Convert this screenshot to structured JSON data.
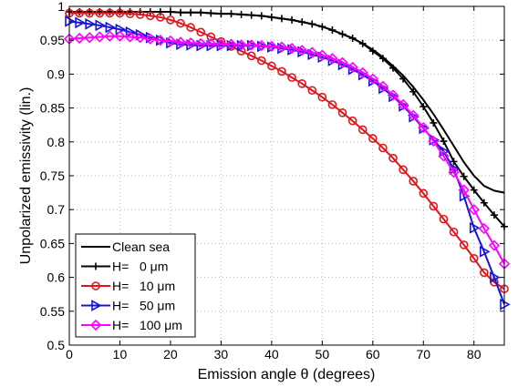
{
  "chart_data": {
    "type": "line",
    "title": "",
    "xlabel": "Emission angle θ (degrees)",
    "ylabel": "Unpolarized emissivity (lin.)",
    "xlim": [
      0,
      86
    ],
    "ylim": [
      0.5,
      1.0
    ],
    "xticks": [
      0,
      10,
      20,
      30,
      40,
      50,
      60,
      70,
      80
    ],
    "yticks": [
      0.5,
      0.55,
      0.6,
      0.65,
      0.7,
      0.75,
      0.8,
      0.85,
      0.9,
      0.95,
      1.0
    ],
    "xtick_labels": [
      "0",
      "10",
      "20",
      "30",
      "40",
      "50",
      "60",
      "70",
      "80"
    ],
    "ytick_labels": [
      "0.5",
      "0.55",
      "0.6",
      "0.65",
      "0.7",
      "0.75",
      "0.8",
      "0.85",
      "0.9",
      "0.95",
      "1"
    ],
    "grid": true,
    "legend_position": "bottom-left",
    "x": [
      0,
      2,
      4,
      6,
      8,
      10,
      12,
      14,
      16,
      18,
      20,
      22,
      24,
      26,
      28,
      30,
      32,
      34,
      36,
      38,
      40,
      42,
      44,
      46,
      48,
      50,
      52,
      54,
      56,
      58,
      60,
      62,
      64,
      66,
      68,
      70,
      72,
      74,
      76,
      78,
      80,
      82,
      84,
      86
    ],
    "series": [
      {
        "name": "Clean sea",
        "color": "#000000",
        "marker": "none",
        "values": [
          0.992,
          0.992,
          0.992,
          0.992,
          0.992,
          0.992,
          0.992,
          0.992,
          0.992,
          0.992,
          0.992,
          0.991,
          0.991,
          0.991,
          0.99,
          0.989,
          0.989,
          0.988,
          0.987,
          0.986,
          0.984,
          0.982,
          0.98,
          0.977,
          0.974,
          0.97,
          0.965,
          0.959,
          0.953,
          0.945,
          0.936,
          0.925,
          0.912,
          0.898,
          0.881,
          0.862,
          0.841,
          0.818,
          0.794,
          0.77,
          0.75,
          0.735,
          0.728,
          0.725
        ]
      },
      {
        "name": "H=   0 μm",
        "color": "#000000",
        "marker": "plus",
        "values": [
          0.992,
          0.992,
          0.992,
          0.992,
          0.992,
          0.992,
          0.992,
          0.992,
          0.992,
          0.992,
          0.992,
          0.991,
          0.991,
          0.991,
          0.99,
          0.989,
          0.989,
          0.988,
          0.987,
          0.986,
          0.984,
          0.982,
          0.98,
          0.977,
          0.974,
          0.97,
          0.965,
          0.959,
          0.953,
          0.945,
          0.934,
          0.923,
          0.909,
          0.893,
          0.874,
          0.852,
          0.828,
          0.801,
          0.771,
          0.749,
          0.729,
          0.71,
          0.692,
          0.675
        ]
      },
      {
        "name": "H=   10 μm",
        "color": "#e0161a",
        "marker": "circle",
        "values": [
          0.99,
          0.99,
          0.99,
          0.99,
          0.99,
          0.99,
          0.989,
          0.988,
          0.986,
          0.984,
          0.98,
          0.975,
          0.969,
          0.962,
          0.955,
          0.948,
          0.941,
          0.934,
          0.927,
          0.92,
          0.912,
          0.904,
          0.895,
          0.886,
          0.876,
          0.866,
          0.855,
          0.843,
          0.831,
          0.818,
          0.805,
          0.791,
          0.776,
          0.759,
          0.742,
          0.724,
          0.705,
          0.686,
          0.667,
          0.648,
          0.628,
          0.607,
          0.593,
          0.583
        ]
      },
      {
        "name": "H=   50 μm",
        "color": "#1414e0",
        "marker": "triangle-right",
        "values": [
          0.978,
          0.976,
          0.974,
          0.972,
          0.969,
          0.966,
          0.962,
          0.958,
          0.954,
          0.95,
          0.946,
          0.944,
          0.943,
          0.942,
          0.942,
          0.942,
          0.942,
          0.942,
          0.942,
          0.941,
          0.94,
          0.938,
          0.936,
          0.933,
          0.929,
          0.925,
          0.92,
          0.914,
          0.907,
          0.899,
          0.89,
          0.879,
          0.867,
          0.853,
          0.837,
          0.82,
          0.803,
          0.786,
          0.76,
          0.72,
          0.673,
          0.638,
          0.6,
          0.56
        ]
      },
      {
        "name": "H=   100 μm",
        "color": "#ff00ff",
        "marker": "diamond",
        "values": [
          0.952,
          0.953,
          0.954,
          0.955,
          0.956,
          0.956,
          0.955,
          0.954,
          0.952,
          0.95,
          0.949,
          0.947,
          0.946,
          0.945,
          0.945,
          0.944,
          0.944,
          0.943,
          0.943,
          0.942,
          0.941,
          0.94,
          0.938,
          0.935,
          0.932,
          0.928,
          0.923,
          0.917,
          0.91,
          0.902,
          0.893,
          0.882,
          0.869,
          0.855,
          0.839,
          0.821,
          0.801,
          0.779,
          0.755,
          0.729,
          0.7,
          0.672,
          0.647,
          0.62
        ]
      }
    ]
  }
}
